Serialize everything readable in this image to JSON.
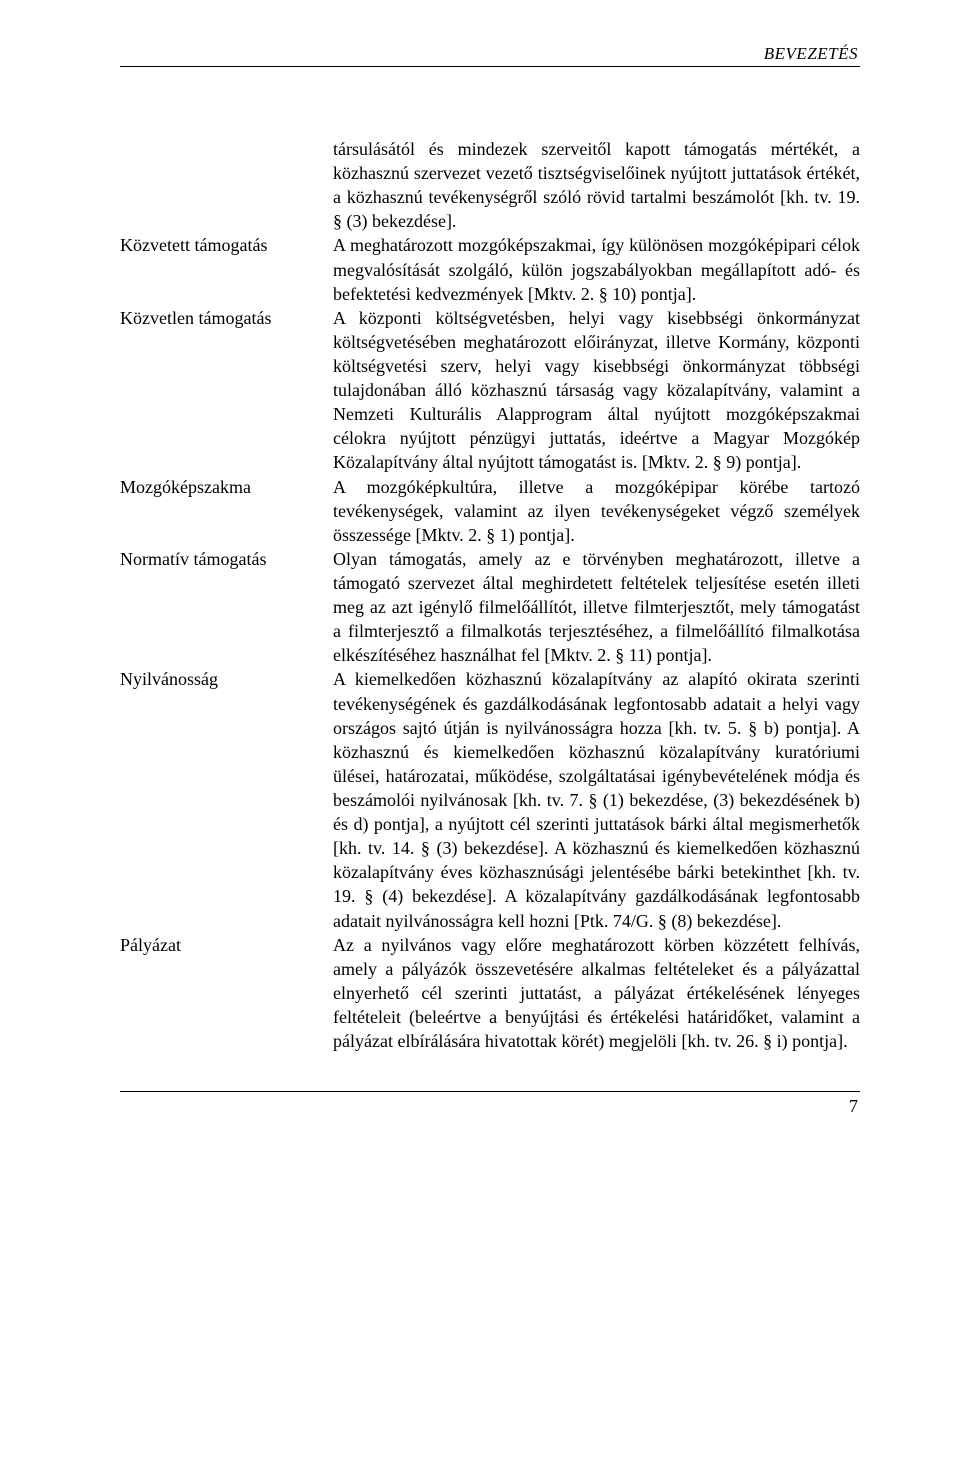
{
  "header": {
    "running_head": "BEVEZETÉS"
  },
  "entries": [
    {
      "term": "",
      "definition": "társulásától és mindezek szerveitől kapott támogatás mértékét, a közhasznú szervezet vezető tisztségviselőinek nyújtott juttatások értékét, a közhasznú tevékenységről szóló rövid tartalmi beszámolót [kh. tv. 19. § (3) bekezdése]."
    },
    {
      "term": "Közvetett támogatás",
      "definition": "A meghatározott mozgóképszakmai, így különösen mozgóképipari célok megvalósítását szolgáló, külön jogszabályokban megállapított adó- és befektetési kedvezmények [Mktv. 2. § 10) pontja]."
    },
    {
      "term": "Közvetlen támogatás",
      "definition": "A központi költségvetésben, helyi vagy kisebbségi önkormányzat költségvetésében meghatározott előirányzat, illetve Kormány, központi költségvetési szerv, helyi vagy kisebbségi önkormányzat többségi tulajdonában álló közhasznú társaság vagy közalapítvány, valamint a Nemzeti Kulturális Alapprogram által nyújtott mozgóképszakmai célokra nyújtott pénzügyi juttatás, ideértve a Magyar Mozgókép Közalapítvány által nyújtott támogatást is. [Mktv. 2. § 9) pontja]."
    },
    {
      "term": "Mozgóképszakma",
      "definition": "A mozgóképkultúra, illetve a mozgóképipar körébe tartozó tevékenységek, valamint az ilyen tevékenységeket végző személyek összessége [Mktv. 2. § 1) pontja]."
    },
    {
      "term": "Normatív támogatás",
      "definition": "Olyan támogatás, amely az e törvényben meghatározott, illetve a támogató szervezet által meghirdetett feltételek teljesítése esetén illeti meg az azt igénylő filmelőállítót, illetve filmterjesztőt, mely támogatást a filmterjesztő a filmalkotás terjesztéséhez, a filmelőállító filmalkotása elkészítéséhez használhat fel [Mktv. 2. § 11) pontja]."
    },
    {
      "term": "Nyilvánosság",
      "definition": "A kiemelkedően közhasznú közalapítvány az alapító okirata szerinti tevékenységének és gazdálkodásának legfontosabb adatait a helyi vagy országos sajtó útján is nyilvánosságra hozza [kh. tv. 5. § b) pontja]. A közhasznú és kiemelkedően közhasznú közalapítvány kuratóriumi ülései, határozatai, működése, szolgáltatásai igénybevételének módja és beszámolói nyilvánosak [kh. tv. 7. § (1) bekezdése, (3) bekezdésének b) és d) pontja], a nyújtott cél szerinti juttatások bárki által megismerhetők [kh. tv. 14. § (3) bekezdése]. A közhasznú és kiemelkedően közhasznú közalapítvány éves közhasznúsági jelentésébe bárki betekinthet [kh. tv. 19. § (4) bekezdése]. A közalapítvány gazdálkodásának legfontosabb adatait nyilvánosságra kell hozni [Ptk. 74/G. § (8) bekezdése]."
    },
    {
      "term": "Pályázat",
      "definition": "Az a nyilvános vagy előre meghatározott körben közzétett felhívás, amely a pályázók összevetésére alkalmas feltételeket és a pályázattal elnyerhető cél szerinti juttatást, a pályázat értékelésének lényeges feltételeit (beleértve a benyújtási és értékelési határidőket, valamint a pályázat elbírálására hivatottak körét) megjelöli [kh. tv. 26. § i) pontja]."
    }
  ],
  "footer": {
    "page_number": "7"
  }
}
